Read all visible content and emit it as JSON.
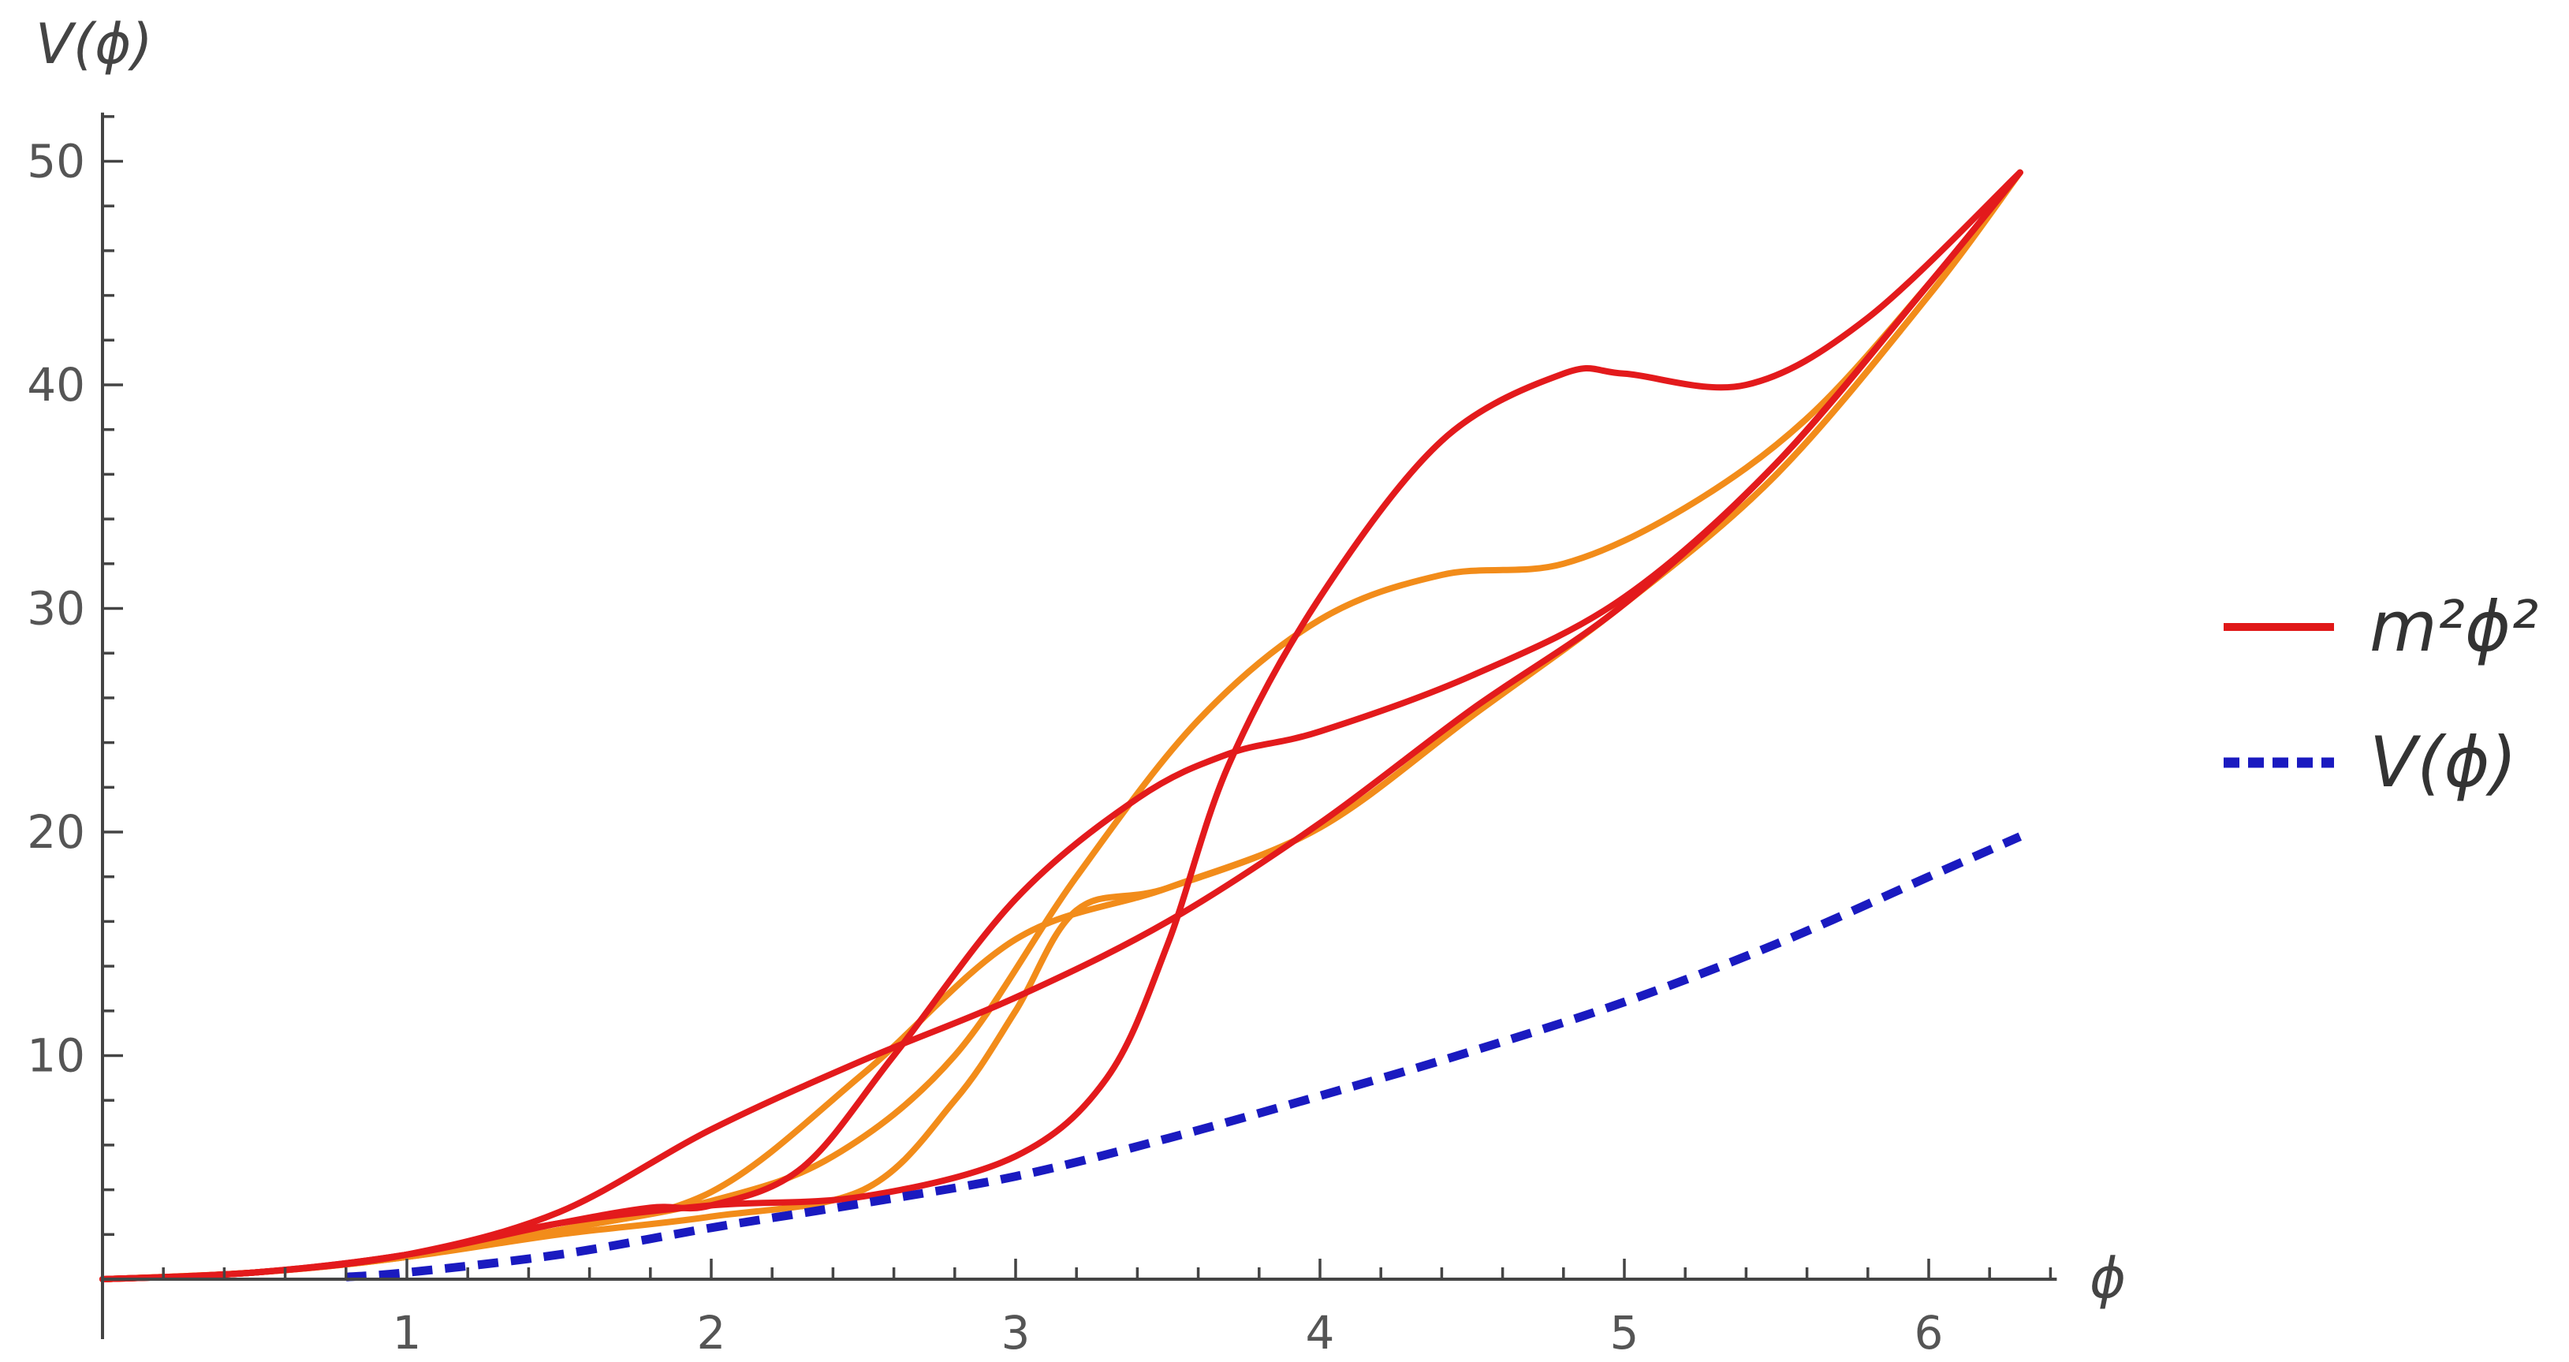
{
  "chart_data": {
    "type": "line",
    "title": "",
    "xlabel": "ϕ",
    "ylabel": "V(ϕ)",
    "xlim": [
      0,
      6.4
    ],
    "ylim": [
      0,
      52
    ],
    "x_ticks": [
      1,
      2,
      3,
      4,
      5,
      6
    ],
    "y_ticks": [
      10,
      20,
      30,
      40,
      50
    ],
    "x_minor_step": 0.2,
    "y_minor_step": 2,
    "grid": false,
    "legend_placement": "right",
    "legend": [
      {
        "label": "m²ϕ²",
        "color": "#e01818",
        "style": "solid"
      },
      {
        "label": "V(ϕ)",
        "color": "#1a1ac0",
        "style": "dotted"
      }
    ],
    "series": [
      {
        "name": "m²ϕ²",
        "color": "#e31a1c",
        "style": "solid",
        "x": [
          0,
          0.5,
          1.0,
          1.5,
          2.0,
          2.5,
          3.0,
          3.5,
          4.0,
          4.5,
          5.0,
          5.5,
          6.0,
          6.3
        ],
        "y": [
          0,
          0.3,
          1.1,
          3.0,
          6.7,
          9.8,
          12.6,
          16.0,
          20.4,
          25.5,
          30.2,
          36.5,
          44.5,
          49.5
        ]
      },
      {
        "name": "",
        "color": "#e31a1c",
        "style": "solid",
        "x": [
          0,
          0.5,
          1.0,
          1.5,
          1.8,
          2.0,
          2.3,
          2.6,
          3.0,
          3.4,
          3.7,
          4.0,
          4.5,
          5.0,
          5.5,
          6.0,
          6.3
        ],
        "y": [
          0,
          0.3,
          1.1,
          2.5,
          3.2,
          3.3,
          5.0,
          10.0,
          17.0,
          21.5,
          23.5,
          24.5,
          27.0,
          30.5,
          36.5,
          44.5,
          49.5
        ]
      },
      {
        "name": "",
        "color": "#e31a1c",
        "style": "solid",
        "x": [
          0,
          0.5,
          1.0,
          1.5,
          2.0,
          2.5,
          3.0,
          3.3,
          3.5,
          3.7,
          4.0,
          4.4,
          4.8,
          5.0,
          5.4,
          5.8,
          6.3
        ],
        "y": [
          0,
          0.3,
          1.1,
          2.5,
          3.3,
          3.7,
          5.5,
          9.0,
          15.0,
          23.0,
          30.5,
          37.5,
          40.5,
          40.5,
          40.0,
          43.0,
          49.5
        ]
      },
      {
        "name": "",
        "color": "#f28c1a",
        "style": "solid",
        "x": [
          0,
          0.5,
          1.0,
          1.5,
          2.0,
          2.5,
          3.0,
          3.5,
          4.0,
          4.5,
          5.0,
          5.5,
          6.0,
          6.3
        ],
        "y": [
          0,
          0.3,
          1.0,
          2.2,
          3.9,
          9.2,
          15.2,
          17.5,
          20.2,
          25.2,
          30.2,
          36.0,
          44.0,
          49.5
        ]
      },
      {
        "name": "",
        "color": "#f28c1a",
        "style": "solid",
        "x": [
          0,
          0.5,
          1.0,
          1.5,
          2.0,
          2.4,
          2.8,
          3.2,
          3.6,
          4.0,
          4.4,
          4.8,
          5.2,
          5.6,
          6.0,
          6.3
        ],
        "y": [
          0,
          0.3,
          1.0,
          2.2,
          3.5,
          5.5,
          10.0,
          18.0,
          25.0,
          29.5,
          31.5,
          32.0,
          34.5,
          38.5,
          44.5,
          49.5
        ]
      },
      {
        "name": "",
        "color": "#f28c1a",
        "style": "solid",
        "x": [
          0,
          0.5,
          1.0,
          1.5,
          2.0,
          2.5,
          2.8,
          3.0,
          3.2,
          3.5,
          4.0,
          4.5,
          5.0,
          5.5,
          6.0,
          6.3
        ],
        "y": [
          0,
          0.3,
          1.0,
          2.0,
          2.8,
          4.0,
          8.0,
          12.0,
          16.5,
          17.5,
          20.2,
          25.2,
          30.2,
          36.0,
          44.0,
          49.5
        ]
      },
      {
        "name": "V(ϕ)",
        "color": "#1a1ac0",
        "style": "dotted",
        "x": [
          0.8,
          1.0,
          1.5,
          2.0,
          2.5,
          3.0,
          3.5,
          4.0,
          4.5,
          5.0,
          5.5,
          6.0,
          6.3
        ],
        "y": [
          0.1,
          0.3,
          1.1,
          2.3,
          3.4,
          4.6,
          6.3,
          8.2,
          10.2,
          12.4,
          15.0,
          18.0,
          19.8
        ]
      }
    ]
  }
}
